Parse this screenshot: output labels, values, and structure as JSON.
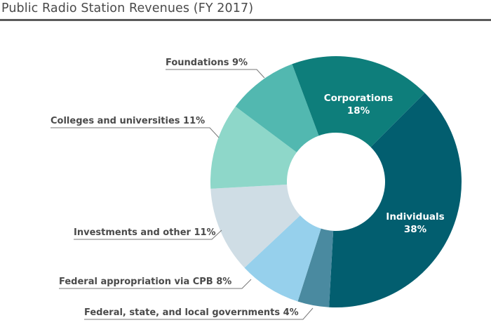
{
  "title": "Public Radio Station Revenues (FY 2017)",
  "chart_data": {
    "type": "pie",
    "subtype": "donut",
    "title": "Public Radio Station Revenues (FY 2017)",
    "start_angle_deg": 45,
    "direction": "clockwise",
    "slices": [
      {
        "name": "Individuals",
        "value": 38,
        "label": "Individuals",
        "pct_label": "38%",
        "color": "#025e6f",
        "label_position": "inside"
      },
      {
        "name": "Federal, state, and local governments",
        "value": 4,
        "label": "Federal, state, and local governments 4%",
        "color": "#4a8aa0",
        "label_position": "outside"
      },
      {
        "name": "Federal appropriation via CPB",
        "value": 8,
        "label": "Federal appropriation via CPB 8%",
        "color": "#96d0ec",
        "label_position": "outside"
      },
      {
        "name": "Investments and other",
        "value": 11,
        "label": "Investments and other 11%",
        "color": "#cfdde5",
        "label_position": "outside"
      },
      {
        "name": "Colleges and universities",
        "value": 11,
        "label": "Colleges and universities 11%",
        "color": "#8ed7c9",
        "label_position": "outside"
      },
      {
        "name": "Foundations",
        "value": 9,
        "label": "Foundations 9%",
        "color": "#52b8b0",
        "label_position": "outside"
      },
      {
        "name": "Corporations",
        "value": 18,
        "label": "Corporations",
        "pct_label": "18%",
        "color": "#0e7e7b",
        "label_position": "inside"
      }
    ]
  }
}
